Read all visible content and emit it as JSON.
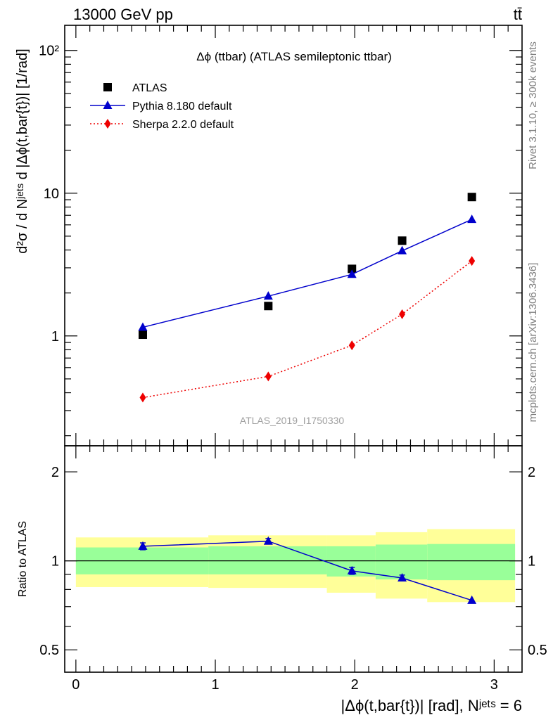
{
  "header": {
    "energy_label": "13000 GeV pp",
    "process_label": "tt̄"
  },
  "side_labels": {
    "rivet": "Rivet 3.1.10, ≥ 300k events",
    "mcplots": "mcplots.cern.ch [arXiv:1306.3436]"
  },
  "colors": {
    "atlas": "#000000",
    "pythia": "#0000cc",
    "sherpa": "#ee0000",
    "band_inner": "#99ff99",
    "band_outer": "#ffff99"
  },
  "chart_data": [
    {
      "type": "scatter",
      "title": "Δϕ (ttbar) (ATLAS semileptonic ttbar)",
      "analysis_label": "ATLAS_2019_I1750330",
      "ylabel": "d²σ / d Nʲᵉᵗˢ d |Δϕ(t,bar{t})| [1/rad]",
      "yscale": "log",
      "ylim": [
        0.17,
        150
      ],
      "xlim": [
        -0.08,
        3.2
      ],
      "ytick_labels": [
        "1",
        "10",
        "10²"
      ],
      "legend_placement": "top-left",
      "series": [
        {
          "name": "ATLAS",
          "marker": "square",
          "x": [
            0.48,
            1.38,
            1.98,
            2.34,
            2.84
          ],
          "y": [
            1.02,
            1.62,
            2.95,
            4.65,
            9.4
          ]
        },
        {
          "name": "Pythia 8.180 default",
          "marker": "triangle",
          "line": "solid",
          "x": [
            0.48,
            1.38,
            1.98,
            2.34,
            2.84
          ],
          "y": [
            1.15,
            1.9,
            2.7,
            3.95,
            6.55
          ]
        },
        {
          "name": "Sherpa 2.2.0 default",
          "marker": "diamond",
          "line": "dotted",
          "x": [
            0.48,
            1.38,
            1.98,
            2.34,
            2.84
          ],
          "y": [
            0.37,
            0.52,
            0.86,
            1.42,
            3.35
          ]
        }
      ]
    },
    {
      "type": "scatter",
      "ylabel": "Ratio to ATLAS",
      "xlabel": "|Δϕ(t,bar{t})| [rad], Nʲᵉᵗˢ = 6",
      "yscale": "log",
      "ylim": [
        0.42,
        2.45
      ],
      "xlim": [
        -0.08,
        3.2
      ],
      "xtick_labels": [
        "0",
        "1",
        "2",
        "3"
      ],
      "ytick_labels": [
        "0.5",
        "1",
        "2"
      ],
      "bins": [
        {
          "x0": 0.0,
          "x1": 0.95,
          "inner": [
            0.9,
            1.11
          ],
          "outer": [
            0.815,
            1.2
          ]
        },
        {
          "x0": 0.95,
          "x1": 1.8,
          "inner": [
            0.9,
            1.12
          ],
          "outer": [
            0.81,
            1.22
          ]
        },
        {
          "x0": 1.8,
          "x1": 2.15,
          "inner": [
            0.885,
            1.12
          ],
          "outer": [
            0.78,
            1.22
          ]
        },
        {
          "x0": 2.15,
          "x1": 2.52,
          "inner": [
            0.865,
            1.135
          ],
          "outer": [
            0.745,
            1.25
          ]
        },
        {
          "x0": 2.52,
          "x1": 3.15,
          "inner": [
            0.86,
            1.14
          ],
          "outer": [
            0.725,
            1.28
          ]
        }
      ],
      "series": [
        {
          "name": "Pythia 8.180 default",
          "marker": "triangle",
          "line": "solid",
          "x": [
            0.48,
            1.38,
            1.98,
            2.34,
            2.84
          ],
          "y": [
            1.12,
            1.165,
            0.925,
            0.875,
            0.735
          ],
          "err": [
            0.03,
            0.025,
            0.025,
            0.02,
            0.0
          ]
        }
      ]
    }
  ]
}
